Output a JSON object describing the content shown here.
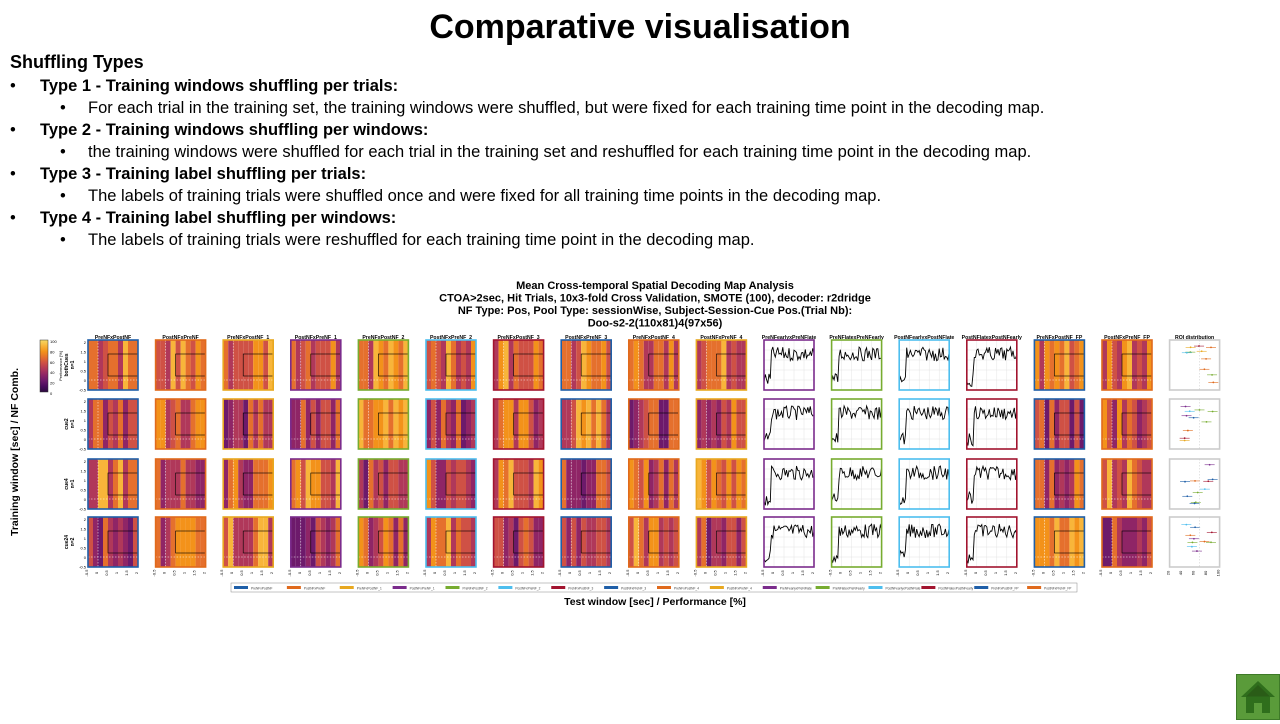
{
  "slide": {
    "title": "Comparative visualisation",
    "subheading": "Shuffling Types",
    "items": [
      {
        "title": "Type 1 - Training windows shuffling per trials:",
        "desc": "For each trial in the training set, the training windows were shuffled, but were fixed for each training time point in the decoding map."
      },
      {
        "title": "Type 2 - Training windows shuffling per windows:",
        "desc": "the training windows were shuffled for each trial in the training set and reshuffled for each training time point in the decoding map."
      },
      {
        "title": "Type 3 - Training label shuffling per trials:",
        "desc": "The labels of training trials were shuffled once and were fixed for all training time points in the decoding map."
      },
      {
        "title": "Type 4 - Training label shuffling per windows:",
        "desc": "The labels of training trials were reshuffled for each training time point in the decoding map."
      }
    ]
  },
  "figure": {
    "title_lines": [
      "Mean Cross-temporal Spatial Decoding Map Analysis",
      "CTOA>2sec, Hit Trials, 10x3-fold Cross Validation, SMOTE (100), decoder: r2dridge",
      "NF Type: Pos, Pool Type: sessionWise, Subject-Session-Cue Pos.(Trial Nb):",
      "Doo-s2-2(110x81)4(97x56)"
    ],
    "xlabel": "Test window [sec] / Performance [%]",
    "ylabel": "Training window [sec] / NF Comb.",
    "colorbar_ticks": [
      "100",
      "80",
      "60",
      "40",
      "20",
      "0"
    ],
    "colorbar_label": "Performance [%]",
    "columns": [
      {
        "label": "PreNFxPostNF",
        "color": "#1f5fa8",
        "kind": "map"
      },
      {
        "label": "PostNFxPreNF",
        "color": "#e06a1c",
        "kind": "map"
      },
      {
        "label": "PreNFxPostNF_1",
        "color": "#e8a820",
        "kind": "map"
      },
      {
        "label": "PostNFxPreNF_1",
        "color": "#7b2c8c",
        "kind": "map"
      },
      {
        "label": "PreNFxPostNF_2",
        "color": "#77ac30",
        "kind": "map"
      },
      {
        "label": "PostNFxPreNF_2",
        "color": "#4dbeee",
        "kind": "map"
      },
      {
        "label": "PreNFxPostNF_3",
        "color": "#a2142f",
        "kind": "map"
      },
      {
        "label": "PostNFxPreNF_3",
        "color": "#1f5fa8",
        "kind": "map"
      },
      {
        "label": "PreNFxPostNF_4",
        "color": "#e06a1c",
        "kind": "map"
      },
      {
        "label": "PostNFxPreNF_4",
        "color": "#e8a820",
        "kind": "map"
      },
      {
        "label": "PreNFearlyxPreNFlate",
        "color": "#7b2c8c",
        "kind": "line"
      },
      {
        "label": "PreNFlatexPreNFearly",
        "color": "#77ac30",
        "kind": "line"
      },
      {
        "label": "PostNFearlyxPostNFlate",
        "color": "#4dbeee",
        "kind": "line"
      },
      {
        "label": "PostNFlatexPostNFearly",
        "color": "#a2142f",
        "kind": "line"
      },
      {
        "label": "PreNFxPostNF_FP",
        "color": "#1f5fa8",
        "kind": "map"
      },
      {
        "label": "PostNFxPreNF_FP",
        "color": "#e06a1c",
        "kind": "map"
      },
      {
        "label": "ROI distribution",
        "color": "#cccccc",
        "kind": "roi"
      }
    ],
    "rows": [
      {
        "name": "bothCues",
        "n": "n=1"
      },
      {
        "name": "cue2",
        "n": "n=1"
      },
      {
        "name": "cue4",
        "n": "n=1"
      },
      {
        "name": "cue24",
        "n": "n=2"
      }
    ],
    "x_ticks": [
      "-0.5",
      "0",
      "0.5",
      "1",
      "1.5",
      "2"
    ],
    "y_ticks": [
      "2",
      "1.5",
      "1",
      "0.5",
      "0",
      "-0.5"
    ],
    "roi_x_ticks": [
      "20",
      "40",
      "60",
      "80",
      "100"
    ],
    "legend": [
      {
        "label": "PreNFxPostNF",
        "color": "#1f5fa8"
      },
      {
        "label": "PostNFxPreNF",
        "color": "#e06a1c"
      },
      {
        "label": "PreNFxPostNF_1",
        "color": "#e8a820"
      },
      {
        "label": "PostNFxPreNF_1",
        "color": "#7b2c8c"
      },
      {
        "label": "PreNFxPostNF_2",
        "color": "#77ac30"
      },
      {
        "label": "PostNFxPreNF_2",
        "color": "#4dbeee"
      },
      {
        "label": "PreNFxPostNF_3",
        "color": "#a2142f"
      },
      {
        "label": "PostNFxPreNF_3",
        "color": "#1f5fa8"
      },
      {
        "label": "PreNFxPostNF_4",
        "color": "#e06a1c"
      },
      {
        "label": "PostNFxPreNF_4",
        "color": "#e8a820"
      },
      {
        "label": "PreNFearlyxPreNFlate",
        "color": "#7b2c8c"
      },
      {
        "label": "PreNFlatexPreNFearly",
        "color": "#77ac30"
      },
      {
        "label": "PostNFearlyxPostNFlate",
        "color": "#4dbeee"
      },
      {
        "label": "PostNFlatexPostNFearly",
        "color": "#a2142f"
      },
      {
        "label": "PreNFxPostNF_FP",
        "color": "#1f5fa8"
      },
      {
        "label": "PostNFxPreNF_FP",
        "color": "#e06a1c"
      }
    ]
  },
  "home_button": {
    "icon": "home-icon"
  }
}
